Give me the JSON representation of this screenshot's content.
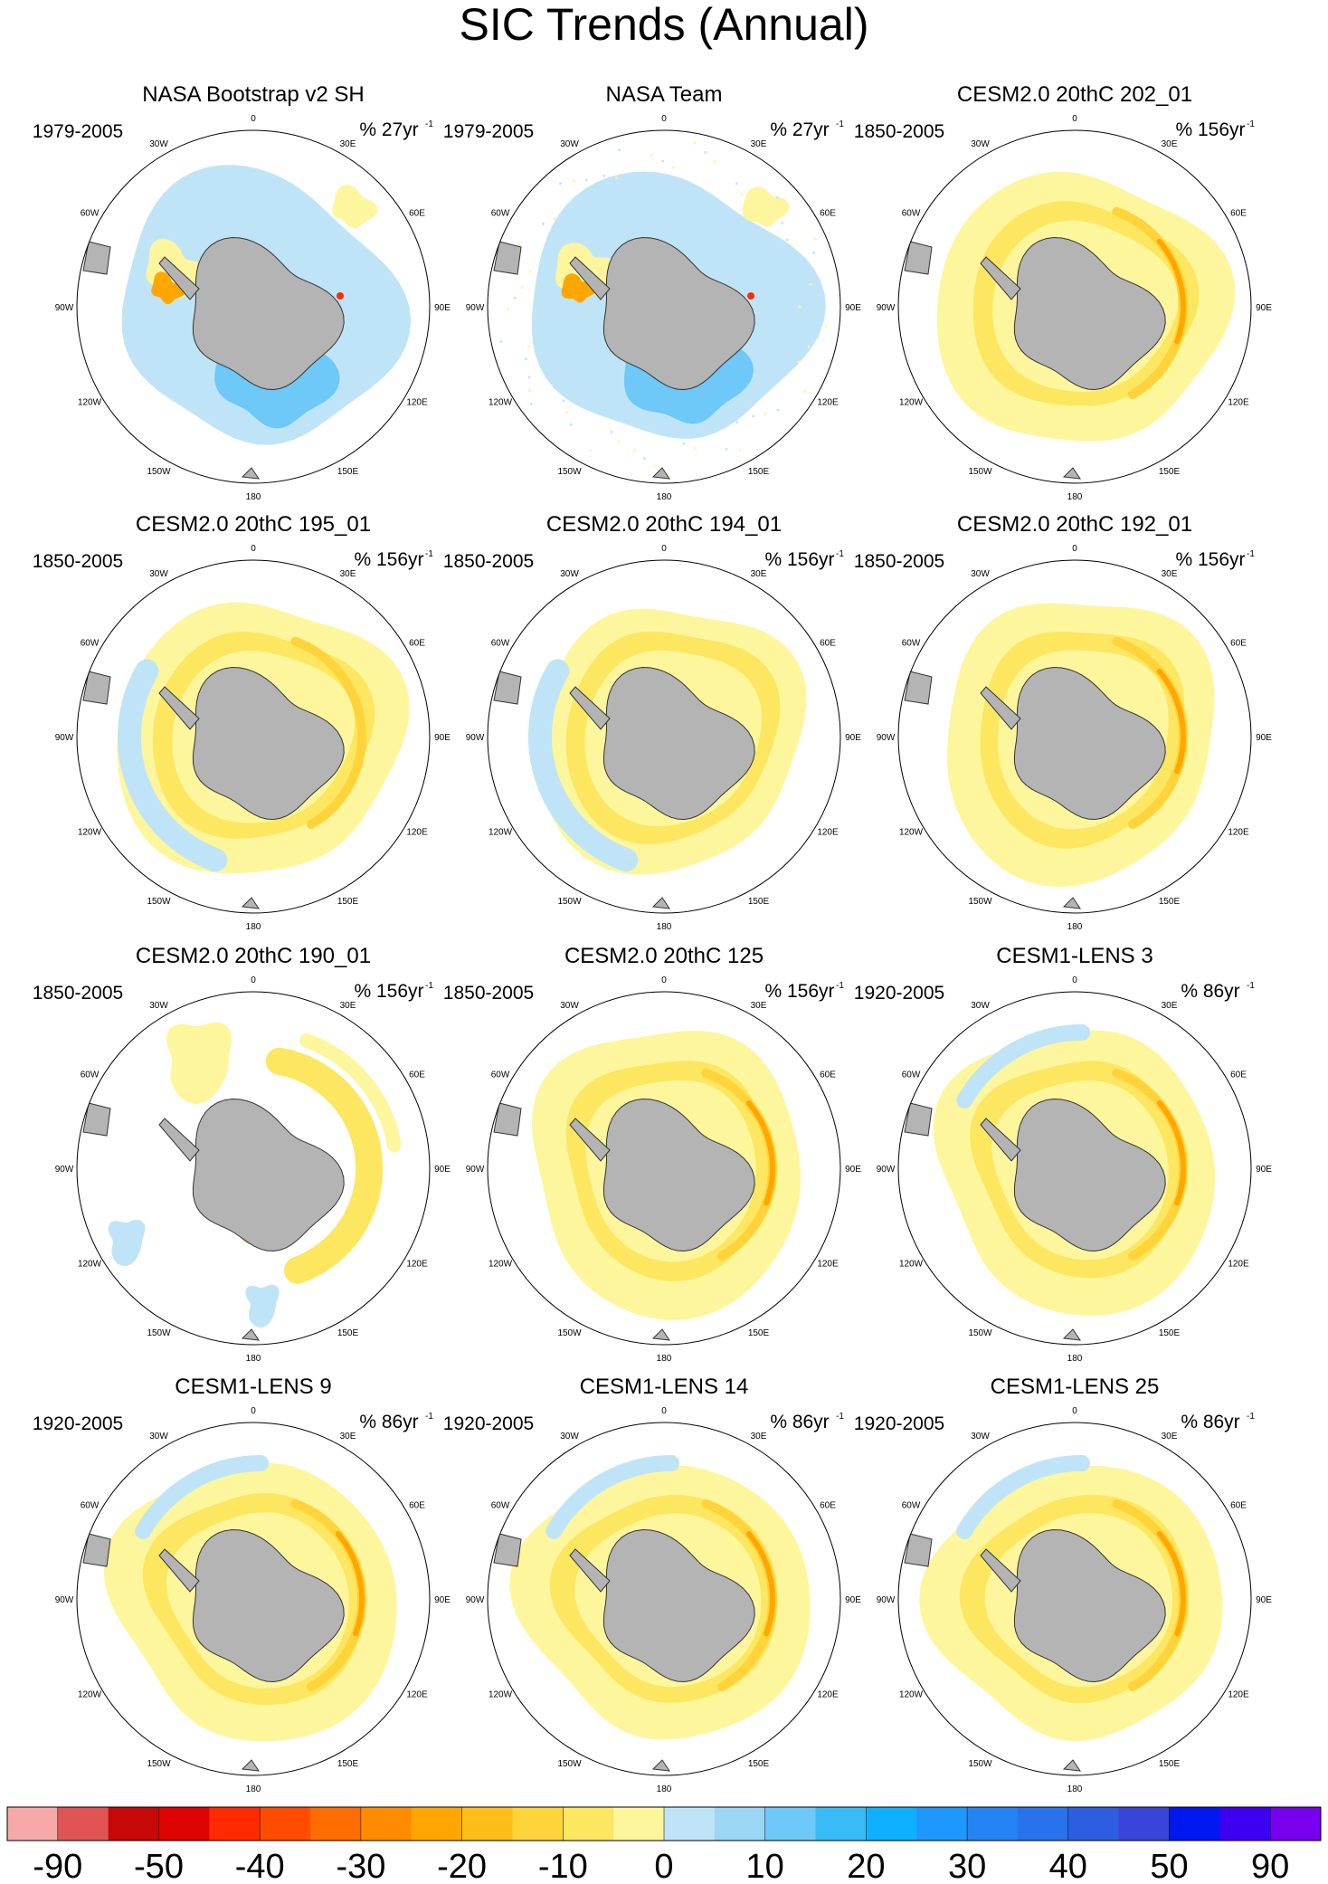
{
  "figure": {
    "title": "SIC Trends (Annual)"
  },
  "longitude_labels": [
    "0",
    "30E",
    "60E",
    "90E",
    "120E",
    "150E",
    "180",
    "150W",
    "120W",
    "90W",
    "60W",
    "30W"
  ],
  "chart_data": {
    "type": "heatmap",
    "projection": "south polar stereographic",
    "variable": "Annual sea ice concentration trend",
    "units_note": "% per record length",
    "panels": [
      {
        "title": "NASA Bootstrap v2 SH",
        "period": "1979-2005",
        "units": "% 27yr",
        "exponent": "-1",
        "pattern": "obs_bootstrap"
      },
      {
        "title": "NASA Team",
        "period": "1979-2005",
        "units": "% 27yr",
        "exponent": "-1",
        "pattern": "obs_team"
      },
      {
        "title": "CESM2.0 20thC 202_01",
        "period": "1850-2005",
        "units": "% 156yr",
        "exponent": "-1",
        "pattern": "model_strong"
      },
      {
        "title": "CESM2.0 20thC 195_01",
        "period": "1850-2005",
        "units": "% 156yr",
        "exponent": "-1",
        "pattern": "model_mixed"
      },
      {
        "title": "CESM2.0 20thC 194_01",
        "period": "1850-2005",
        "units": "% 156yr",
        "exponent": "-1",
        "pattern": "model_weak"
      },
      {
        "title": "CESM2.0 20thC 192_01",
        "period": "1850-2005",
        "units": "% 156yr",
        "exponent": "-1",
        "pattern": "model_strong"
      },
      {
        "title": "CESM2.0 20thC 190_01",
        "period": "1850-2005",
        "units": "% 156yr",
        "exponent": "-1",
        "pattern": "model_sparse"
      },
      {
        "title": "CESM2.0 20thC 125",
        "period": "1850-2005",
        "units": "% 156yr",
        "exponent": "-1",
        "pattern": "model_strong"
      },
      {
        "title": "CESM1-LENS 3",
        "period": "1920-2005",
        "units": "% 86yr",
        "exponent": "-1",
        "pattern": "model_lens"
      },
      {
        "title": "CESM1-LENS 9",
        "period": "1920-2005",
        "units": "% 86yr",
        "exponent": "-1",
        "pattern": "model_lens"
      },
      {
        "title": "CESM1-LENS 14",
        "period": "1920-2005",
        "units": "% 86yr",
        "exponent": "-1",
        "pattern": "model_lens"
      },
      {
        "title": "CESM1-LENS 25",
        "period": "1920-2005",
        "units": "% 86yr",
        "exponent": "-1",
        "pattern": "model_lens"
      }
    ],
    "colorbar": {
      "colors": [
        "#f7a9aa",
        "#e15454",
        "#c60808",
        "#de0404",
        "#ff2a00",
        "#ff4c00",
        "#ff6d00",
        "#ff8c00",
        "#ffa700",
        "#ffbd18",
        "#ffd33a",
        "#fde660",
        "#fdf69c",
        "#c0e4f7",
        "#9bd6f5",
        "#6ec8f8",
        "#39bbf8",
        "#0fb0fd",
        "#1e98fd",
        "#2584f4",
        "#2872ec",
        "#2e5ee0",
        "#3944d9",
        "#0018f0",
        "#3d00f0",
        "#7800ef"
      ],
      "tick_labels": [
        "-90",
        "-50",
        "-40",
        "-30",
        "-20",
        "-10",
        "0",
        "10",
        "20",
        "30",
        "40",
        "50",
        "90"
      ],
      "tick_values": [
        -90,
        -50,
        -40,
        -30,
        -20,
        -10,
        0,
        10,
        20,
        30,
        40,
        50,
        90
      ]
    },
    "colors": {
      "land": "#b4b4b4",
      "coast": "#333333",
      "ocean": "#ffffff",
      "neg_light": "#fdf69c",
      "neg_mid": "#fde660",
      "neg_strong": "#ffd33a",
      "neg_deep": "#ffa700",
      "pos_light": "#c0e4f7",
      "pos_mid": "#9bd6f5",
      "pos_strong": "#6ec8f8",
      "extreme_red": "#ff2a00"
    }
  }
}
